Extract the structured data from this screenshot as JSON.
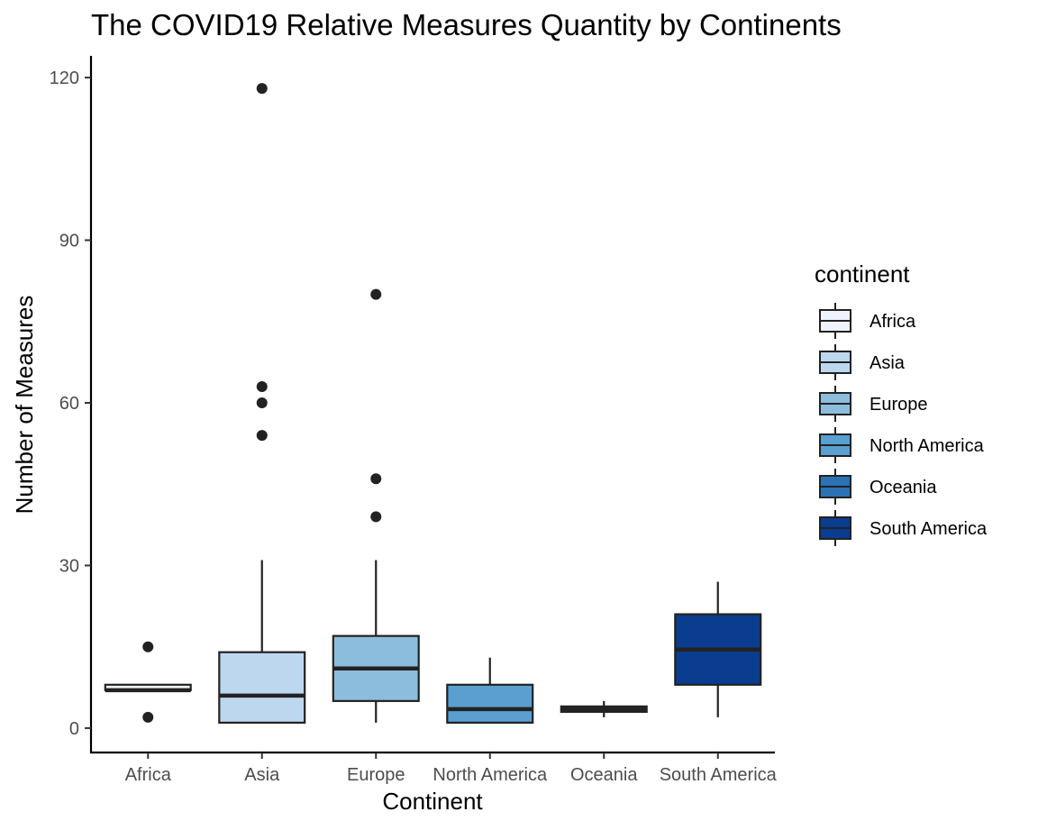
{
  "chart_data": {
    "type": "boxplot",
    "title": "The COVID19 Relative Measures Quantity by Continents",
    "xlabel": "Continent",
    "ylabel": "Number of Measures",
    "ylim": [
      -4.5,
      124
    ],
    "yticks": [
      0,
      30,
      60,
      90,
      120
    ],
    "grid": false,
    "legend": {
      "title": "continent",
      "position": "right"
    },
    "categories": [
      "Africa",
      "Asia",
      "Europe",
      "North America",
      "Oceania",
      "South America"
    ],
    "series": [
      {
        "name": "Africa",
        "color": "#eff3ff",
        "whisker_low": 7,
        "q1": 7,
        "median": 7,
        "q3": 8,
        "whisker_high": 8,
        "outliers": [
          15,
          2
        ]
      },
      {
        "name": "Asia",
        "color": "#bdd7ee",
        "whisker_low": 1,
        "q1": 1,
        "median": 6,
        "q3": 14,
        "whisker_high": 31,
        "outliers": [
          118,
          63,
          60,
          54
        ]
      },
      {
        "name": "Europe",
        "color": "#8dbddc",
        "whisker_low": 1,
        "q1": 5,
        "median": 11,
        "q3": 17,
        "whisker_high": 31,
        "outliers": [
          80,
          46,
          39
        ]
      },
      {
        "name": "North America",
        "color": "#5a9fd0",
        "whisker_low": 1,
        "q1": 1,
        "median": 3.5,
        "q3": 8,
        "whisker_high": 13,
        "outliers": []
      },
      {
        "name": "Oceania",
        "color": "#2b72b4",
        "whisker_low": 2,
        "q1": 3,
        "median": 3.5,
        "q3": 4,
        "whisker_high": 5,
        "outliers": []
      },
      {
        "name": "South America",
        "color": "#0a3d8f",
        "whisker_low": 2,
        "q1": 8,
        "median": 14.5,
        "q3": 21,
        "whisker_high": 27,
        "outliers": []
      }
    ]
  }
}
